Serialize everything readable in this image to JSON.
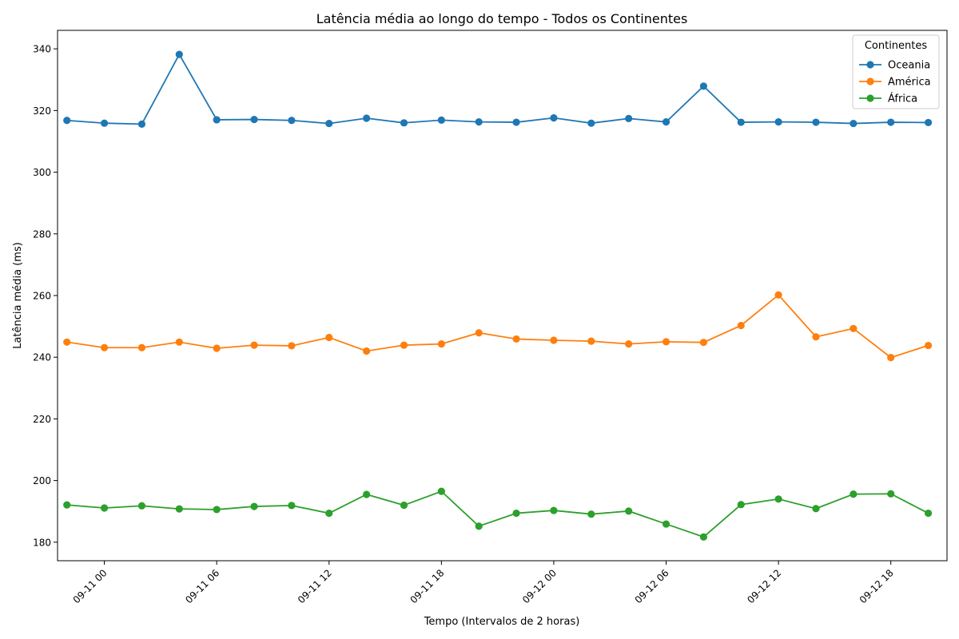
{
  "chart_data": {
    "type": "line",
    "title": "Latência média ao longo do tempo - Todos os Continentes",
    "xlabel": "Tempo (Intervalos de 2 horas)",
    "ylabel": "Latência média (ms)",
    "x": [
      "09-10 22:00",
      "09-11 00:00",
      "09-11 02:00",
      "09-11 04:00",
      "09-11 06:00",
      "09-11 08:00",
      "09-11 10:00",
      "09-11 12:00",
      "09-11 14:00",
      "09-11 16:00",
      "09-11 18:00",
      "09-11 20:00",
      "09-11 22:00",
      "09-12 00:00",
      "09-12 02:00",
      "09-12 04:00",
      "09-12 06:00",
      "09-12 08:00",
      "09-12 10:00",
      "09-12 12:00",
      "09-12 14:00",
      "09-12 16:00",
      "09-12 18:00",
      "09-12 20:00"
    ],
    "xticks": [
      "09-11 00",
      "09-11 06",
      "09-11 12",
      "09-11 18",
      "09-12 00",
      "09-12 06",
      "09-12 12",
      "09-12 18"
    ],
    "xrange": [
      "09-10 21:30",
      "09-12 21:00"
    ],
    "ylim": [
      174,
      346
    ],
    "yticks": [
      180,
      200,
      220,
      240,
      260,
      280,
      300,
      320,
      340
    ],
    "grid": false,
    "legend": {
      "title": "Continentes",
      "position": "top-right"
    },
    "series": [
      {
        "name": "Oceania",
        "color": "#1f77b4",
        "values": [
          316.8,
          315.9,
          315.6,
          338.2,
          317.0,
          317.1,
          316.8,
          315.8,
          317.5,
          316.0,
          316.9,
          316.3,
          316.2,
          317.6,
          315.9,
          317.4,
          316.3,
          327.9,
          316.2,
          316.3,
          316.2,
          315.8,
          316.2,
          316.1
        ]
      },
      {
        "name": "América",
        "color": "#ff7f0e",
        "values": [
          244.9,
          243.1,
          243.1,
          244.9,
          242.9,
          243.9,
          243.7,
          246.4,
          242.0,
          243.9,
          244.3,
          247.9,
          245.9,
          245.5,
          245.2,
          244.3,
          245.0,
          244.8,
          250.3,
          260.2,
          246.6,
          249.3,
          239.9,
          243.8
        ]
      },
      {
        "name": "África",
        "color": "#2ca02c",
        "values": [
          192.1,
          191.1,
          191.8,
          190.8,
          190.6,
          191.6,
          191.9,
          189.4,
          195.5,
          192.0,
          196.5,
          185.2,
          189.4,
          190.3,
          189.1,
          190.1,
          185.9,
          181.7,
          192.2,
          194.0,
          190.9,
          195.6,
          195.7,
          189.4
        ]
      }
    ]
  }
}
